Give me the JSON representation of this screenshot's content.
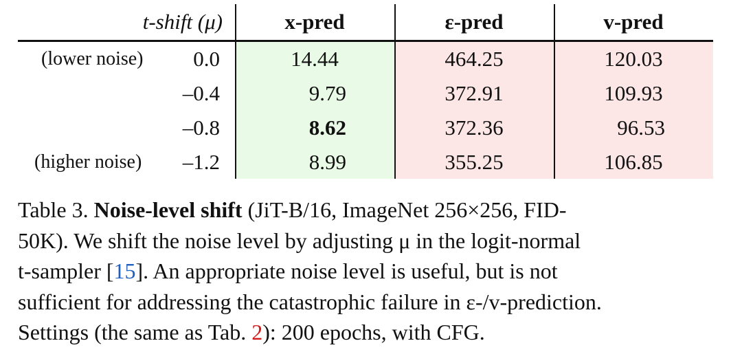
{
  "table": {
    "header": {
      "shift_label": "t-shift (μ)",
      "columns": [
        "x-pred",
        "ε-pred",
        "v-pred"
      ]
    },
    "rows": [
      {
        "note": "(lower noise)",
        "mu": "0.0",
        "x": "14.44",
        "eps": "464.25",
        "v": "120.03",
        "best": false
      },
      {
        "note": "",
        "mu": "–0.4",
        "x": "9.79",
        "eps": "372.91",
        "v": "109.93",
        "best": false
      },
      {
        "note": "",
        "mu": "–0.8",
        "x": "8.62",
        "eps": "372.36",
        "v": "96.53",
        "best": true
      },
      {
        "note": "(higher noise)",
        "mu": "–1.2",
        "x": "8.99",
        "eps": "355.25",
        "v": "106.85",
        "best": false
      }
    ],
    "colors": {
      "x_column_bg": "#e9fbe6",
      "eps_v_columns_bg": "#fde6e6"
    }
  },
  "caption": {
    "prefix": "Table 3.",
    "bold_title": "Noise-level shift",
    "line1_rest": "(JiT-B/16, ImageNet 256×256, FID-",
    "line2": "50K). We shift the noise level by adjusting μ in the logit-normal",
    "line3_a": "t-sampler [",
    "line3_ref": "15",
    "line3_b": "].  An appropriate noise level is useful, but is not",
    "line4": "sufficient for addressing the catastrophic failure in ε-/v-prediction.",
    "line5_a": "Settings (the same as Tab. ",
    "line5_ref": "2",
    "line5_b": "): 200 epochs, with CFG."
  }
}
